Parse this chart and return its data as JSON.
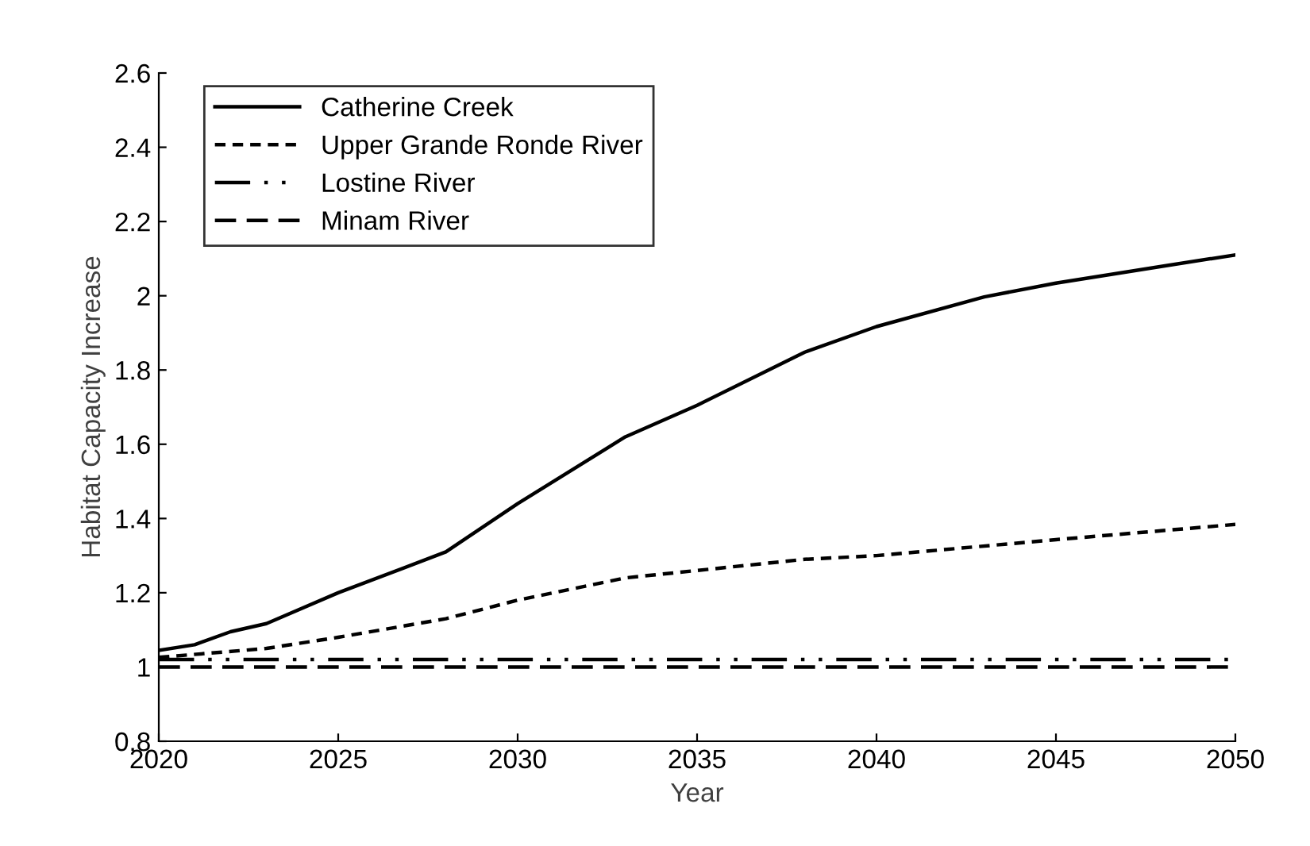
{
  "chart_data": {
    "type": "line",
    "xlabel": "Year",
    "ylabel": "Habitat Capacity Increase",
    "xlim": [
      2020,
      2050
    ],
    "xticks": [
      2020,
      2025,
      2030,
      2035,
      2040,
      2045,
      2050
    ],
    "ylim": [
      0.8,
      2.6
    ],
    "yticks": [
      {
        "value": 0.8,
        "label": "0.8"
      },
      1,
      {
        "value": 1.2,
        "label": "1.2"
      },
      {
        "value": 1.4,
        "label": "1.4"
      },
      {
        "value": 1.6,
        "label": "1.6"
      },
      {
        "value": 1.8,
        "label": "1.8"
      },
      2,
      {
        "value": 2.2,
        "label": "2.2"
      },
      {
        "value": 2.4,
        "label": "2.4"
      },
      {
        "value": 2.6,
        "label": "2.6"
      }
    ],
    "grid": false,
    "legend": "top left",
    "marker": "none",
    "series": [
      {
        "name": "Catherine Creek",
        "color": "#000000",
        "line_style": "solid",
        "x": [
          2020,
          2021,
          2022,
          2023,
          2025,
          2028,
          2030,
          2033,
          2035,
          2038,
          2040,
          2043,
          2045,
          2048,
          2050
        ],
        "values": [
          1.045,
          1.06,
          1.095,
          1.117,
          1.2,
          1.31,
          1.44,
          1.62,
          1.705,
          1.848,
          1.917,
          1.997,
          2.034,
          2.08,
          2.11
        ]
      },
      {
        "name": "Upper Grande Ronde River",
        "color": "#000000",
        "line_style": "dotted",
        "x": [
          2020,
          2023,
          2025,
          2028,
          2030,
          2033,
          2035,
          2038,
          2040,
          2045,
          2050
        ],
        "values": [
          1.026,
          1.05,
          1.08,
          1.13,
          1.18,
          1.24,
          1.26,
          1.29,
          1.3,
          1.343,
          1.384
        ]
      },
      {
        "name": "Lostine River",
        "color": "#000000",
        "line_style": "dashdotdot",
        "x": [
          2020,
          2050
        ],
        "values": [
          1.02,
          1.02
        ]
      },
      {
        "name": "Minam River",
        "color": "#000000",
        "line_style": "dashed",
        "x": [
          2020,
          2050
        ],
        "values": [
          1.0,
          1.0
        ]
      }
    ]
  }
}
